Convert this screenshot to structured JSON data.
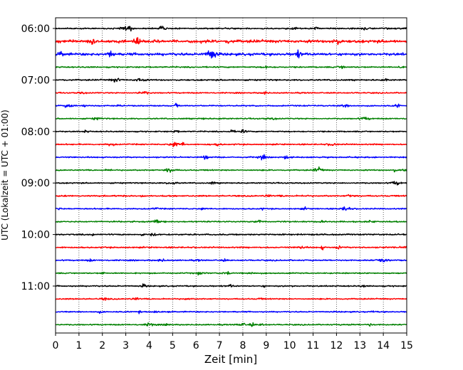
{
  "chart_data": {
    "type": "line",
    "title": "",
    "xlabel": "Zeit  [min]",
    "ylabel": "UTC (Lokalzeit = UTC + 01:00)",
    "xlim": [
      0,
      15
    ],
    "x_ticks": [
      0,
      1,
      2,
      3,
      4,
      5,
      6,
      7,
      8,
      9,
      10,
      11,
      12,
      13,
      14,
      15
    ],
    "y_ticks": [
      "06:00",
      "07:00",
      "08:00",
      "09:00",
      "10:00",
      "11:00"
    ],
    "grid": "vertical-dotted",
    "trace_colors": [
      "#000000",
      "#ff0000",
      "#0000ff",
      "#008000"
    ],
    "trace_start_times": [
      "06:00",
      "06:15",
      "06:30",
      "06:45",
      "07:00",
      "07:15",
      "07:30",
      "07:45",
      "08:00",
      "08:15",
      "08:30",
      "08:45",
      "09:00",
      "09:15",
      "09:30",
      "09:45",
      "10:00",
      "10:15",
      "10:30",
      "10:45",
      "11:00",
      "11:15",
      "11:30",
      "11:45"
    ],
    "trace_activity": [
      0.6,
      2.2,
      1.9,
      0.5,
      0.6,
      0.4,
      0.4,
      0.4,
      0.4,
      0.5,
      0.5,
      0.4,
      0.4,
      0.6,
      0.4,
      0.5,
      0.6,
      0.6,
      0.5,
      0.4,
      0.5,
      0.4,
      0.4,
      0.4
    ]
  }
}
